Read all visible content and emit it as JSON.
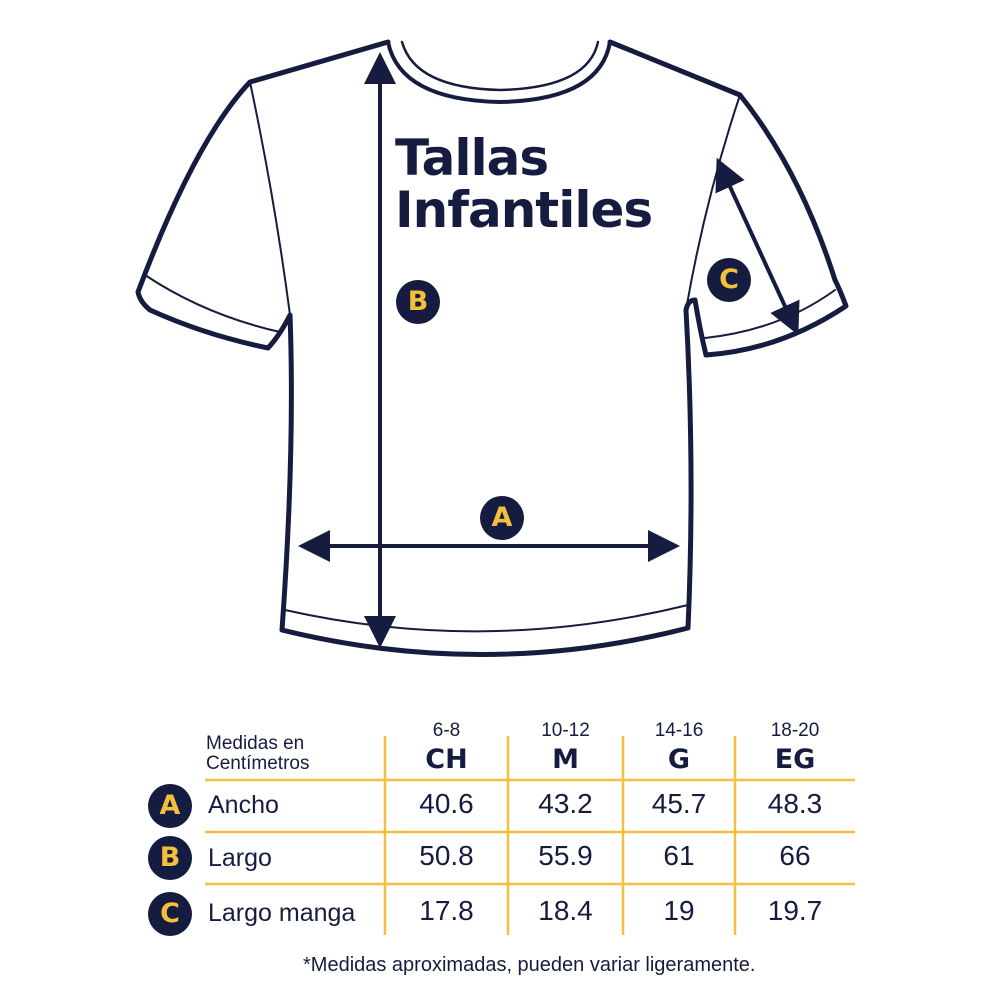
{
  "title": {
    "line1": "Tallas",
    "line2": "Infantiles"
  },
  "diagram_labels": {
    "a": "A",
    "b": "B",
    "c": "C"
  },
  "colors": {
    "navy": "#161c40",
    "yellow": "#f4bf3a"
  },
  "table": {
    "header_label_line1": "Medidas en",
    "header_label_line2": "Centímetros",
    "columns": [
      {
        "range": "6-8",
        "code": "CH"
      },
      {
        "range": "10-12",
        "code": "M"
      },
      {
        "range": "14-16",
        "code": "G"
      },
      {
        "range": "18-20",
        "code": "EG"
      }
    ],
    "rows": [
      {
        "badge": "A",
        "label": "Ancho",
        "values": [
          "40.6",
          "43.2",
          "45.7",
          "48.3"
        ]
      },
      {
        "badge": "B",
        "label": "Largo",
        "values": [
          "50.8",
          "55.9",
          "61",
          "66"
        ]
      },
      {
        "badge": "C",
        "label": "Largo manga",
        "values": [
          "17.8",
          "18.4",
          "19",
          "19.7"
        ]
      }
    ]
  },
  "note": "*Medidas aproximadas, pueden variar ligeramente."
}
